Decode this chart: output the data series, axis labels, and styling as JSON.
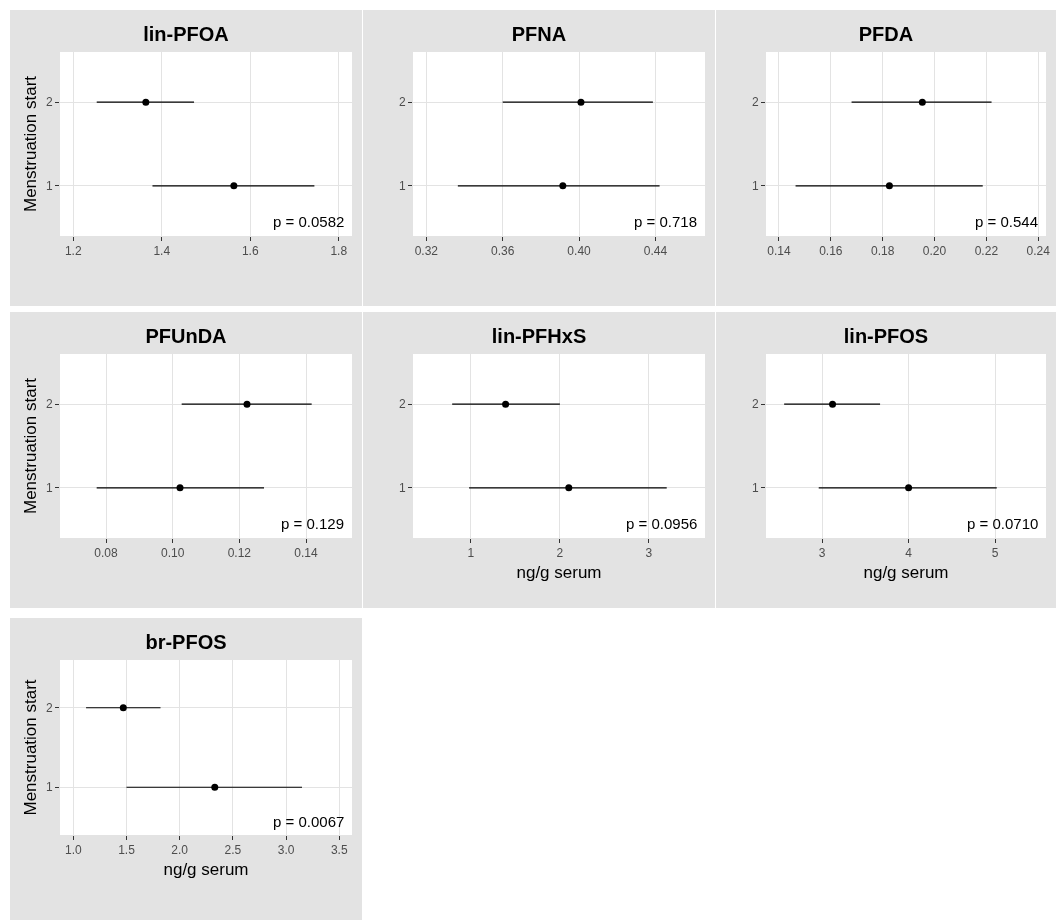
{
  "chart_data": [
    {
      "type": "scatter",
      "orientation": "horizontal",
      "title": "lin-PFOA",
      "ylabel": "Menstruation start",
      "categories": [
        "2",
        "1"
      ],
      "xlim": [
        1.17,
        1.83
      ],
      "xticks": [
        1.2,
        1.4,
        1.6,
        1.8
      ],
      "grid": true,
      "marker": "circle",
      "annotations": [
        "p = 0.0582"
      ],
      "series": [
        {
          "color": "#000000",
          "values": [
            1.364,
            1.563
          ],
          "errors": [
            [
              1.253,
              1.473
            ],
            [
              1.379,
              1.745
            ]
          ]
        }
      ]
    },
    {
      "type": "scatter",
      "orientation": "horizontal",
      "title": "PFNA",
      "categories": [
        "2",
        "1"
      ],
      "xlim": [
        0.313,
        0.466
      ],
      "xticks": [
        0.32,
        0.36,
        {
          "value": 0.4,
          "label": "0.40"
        },
        0.44
      ],
      "grid": true,
      "marker": "circle",
      "annotations": [
        "p = 0.718"
      ],
      "series": [
        {
          "color": "#000000",
          "values": [
            0.401,
            0.3915
          ],
          "errors": [
            [
              0.36,
              0.4387
            ],
            [
              0.3365,
              0.4422
            ]
          ]
        }
      ]
    },
    {
      "type": "scatter",
      "orientation": "horizontal",
      "title": "PFDA",
      "categories": [
        "2",
        "1"
      ],
      "xlim": [
        0.135,
        0.243
      ],
      "xticks": [
        0.14,
        0.16,
        0.18,
        {
          "value": 0.2,
          "label": "0.20"
        },
        0.22,
        0.24
      ],
      "grid": true,
      "marker": "circle",
      "annotations": [
        "p = 0.544"
      ],
      "series": [
        {
          "color": "#000000",
          "values": [
            0.1953,
            0.1826
          ],
          "errors": [
            [
              0.168,
              0.222
            ],
            [
              0.1464,
              0.2186
            ]
          ]
        }
      ]
    },
    {
      "type": "scatter",
      "orientation": "horizontal",
      "title": "PFUnDA",
      "ylabel": "Menstruation start",
      "categories": [
        "2",
        "1"
      ],
      "xlim": [
        0.0662,
        0.1538
      ],
      "xticks": [
        0.08,
        {
          "value": 0.1,
          "label": "0.10"
        },
        0.12,
        0.14
      ],
      "grid": true,
      "marker": "circle",
      "annotations": [
        "p = 0.129"
      ],
      "series": [
        {
          "color": "#000000",
          "values": [
            0.1223,
            0.1022
          ],
          "errors": [
            [
              0.1027,
              0.1417
            ],
            [
              0.0772,
              0.1274
            ]
          ]
        }
      ]
    },
    {
      "type": "scatter",
      "orientation": "horizontal",
      "title": "lin-PFHxS",
      "xlabel": "ng/g serum",
      "categories": [
        "2",
        "1"
      ],
      "xlim": [
        0.35,
        3.63
      ],
      "xticks": [
        1,
        2,
        3
      ],
      "grid": true,
      "marker": "circle",
      "annotations": [
        "p = 0.0956"
      ],
      "series": [
        {
          "color": "#000000",
          "values": [
            1.39,
            2.1
          ],
          "errors": [
            [
              0.79,
              2.0
            ],
            [
              0.98,
              3.2
            ]
          ]
        }
      ]
    },
    {
      "type": "scatter",
      "orientation": "horizontal",
      "title": "lin-PFOS",
      "xlabel": "ng/g serum",
      "categories": [
        "2",
        "1"
      ],
      "xlim": [
        2.35,
        5.59
      ],
      "xticks": [
        3,
        4,
        5
      ],
      "grid": true,
      "marker": "circle",
      "annotations": [
        "p = 0.0710"
      ],
      "series": [
        {
          "color": "#000000",
          "values": [
            3.12,
            4.0
          ],
          "errors": [
            [
              2.56,
              3.67
            ],
            [
              2.96,
              5.02
            ]
          ]
        }
      ]
    },
    {
      "type": "scatter",
      "orientation": "horizontal",
      "title": "br-PFOS",
      "ylabel": "Menstruation start",
      "xlabel": "ng/g serum",
      "categories": [
        "2",
        "1"
      ],
      "xlim": [
        0.875,
        3.62
      ],
      "xticks": [
        {
          "value": 1,
          "label": "1.0"
        },
        1.5,
        {
          "value": 2,
          "label": "2.0"
        },
        2.5,
        {
          "value": 3,
          "label": "3.0"
        },
        3.5
      ],
      "grid": true,
      "marker": "circle",
      "annotations": [
        "p = 0.0067"
      ],
      "series": [
        {
          "color": "#000000",
          "values": [
            1.47,
            2.33
          ],
          "errors": [
            [
              1.12,
              1.82
            ],
            [
              1.5,
              3.15
            ]
          ]
        }
      ]
    }
  ]
}
